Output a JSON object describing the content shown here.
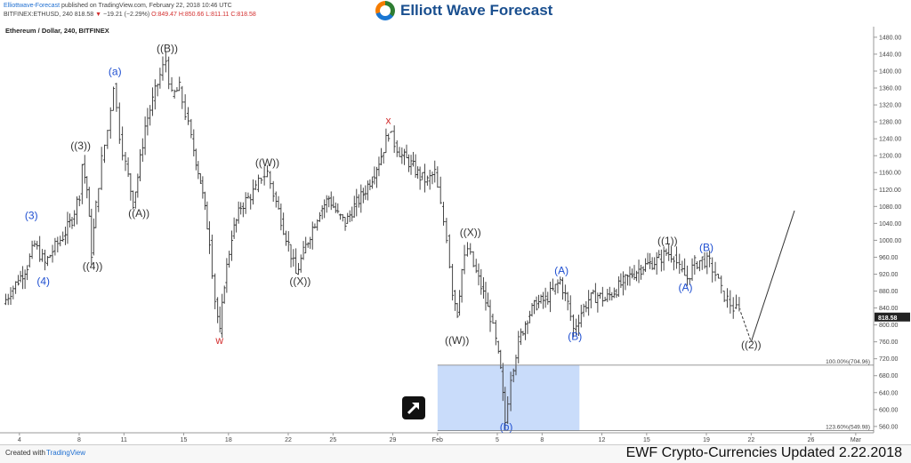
{
  "header": {
    "author": "Elliottwave-Forecast",
    "published": " published on TradingView.com, February 22, 2018 10:46 UTC",
    "symbol_line": "BITFINEX:ETHUSD, 240",
    "last": "818.58",
    "change": "−19.21 (−2.29%)",
    "ohlc": "O:849.47 H:850.66 L:811.11 C:818.58"
  },
  "logo": {
    "text": "Elliott Wave Forecast",
    "icon": "elliott-wave-globe-icon"
  },
  "footer": {
    "created_with": "Created with",
    "tradingview": "TradingView",
    "update_label": "EWF Crypto-Currencies Updated 2.22.2018"
  },
  "chart_data": {
    "type": "bar",
    "title": "Ethereum / Dollar, 240, BITFINEX",
    "ylim": [
      545,
      1505
    ],
    "y_ticks": [
      560,
      600,
      640,
      680,
      720,
      760,
      800,
      840,
      880,
      920,
      960,
      1000,
      1040,
      1080,
      1120,
      1160,
      1200,
      1240,
      1280,
      1320,
      1360,
      1400,
      1440,
      1480
    ],
    "y_tick_labels": [
      "560.00",
      "600.00",
      "640.00",
      "680.00",
      "720.00",
      "760.00",
      "800.00",
      "840.00",
      "880.00",
      "920.00",
      "960.00",
      "1000.00",
      "1040.00",
      "1080.00",
      "1120.00",
      "1160.00",
      "1200.00",
      "1240.00",
      "1280.00",
      "1320.00",
      "1360.00",
      "1400.00",
      "1440.00",
      "1480.00"
    ],
    "last_price_label": "818.58",
    "x_ticks": [
      {
        "day": 4,
        "label": "4"
      },
      {
        "day": 8,
        "label": "8"
      },
      {
        "day": 11,
        "label": "11"
      },
      {
        "day": 15,
        "label": "15"
      },
      {
        "day": 18,
        "label": "18"
      },
      {
        "day": 22,
        "label": "22"
      },
      {
        "day": 25,
        "label": "25"
      },
      {
        "day": 29,
        "label": "29"
      },
      {
        "day": 32,
        "label": "Feb"
      },
      {
        "day": 36,
        "label": "5"
      },
      {
        "day": 39,
        "label": "8"
      },
      {
        "day": 43,
        "label": "12"
      },
      {
        "day": 46,
        "label": "15"
      },
      {
        "day": 50,
        "label": "19"
      },
      {
        "day": 53,
        "label": "22"
      },
      {
        "day": 57,
        "label": "26"
      },
      {
        "day": 60,
        "label": "Mar"
      }
    ],
    "xlim": [
      2.7,
      61.2
    ],
    "price_path": [
      [
        3.0,
        850
      ],
      [
        3.5,
        880
      ],
      [
        4.0,
        905
      ],
      [
        4.6,
        940
      ],
      [
        5.1,
        990
      ],
      [
        5.8,
        945
      ],
      [
        6.3,
        975
      ],
      [
        7.0,
        1010
      ],
      [
        7.6,
        1050
      ],
      [
        8.1,
        1110
      ],
      [
        8.3,
        1180
      ],
      [
        8.6,
        1120
      ],
      [
        8.9,
        970
      ],
      [
        9.2,
        1080
      ],
      [
        9.6,
        1190
      ],
      [
        10.0,
        1260
      ],
      [
        10.4,
        1370
      ],
      [
        10.8,
        1250
      ],
      [
        11.2,
        1180
      ],
      [
        11.7,
        1090
      ],
      [
        12.0,
        1150
      ],
      [
        12.5,
        1270
      ],
      [
        13.0,
        1330
      ],
      [
        13.5,
        1390
      ],
      [
        13.9,
        1425
      ],
      [
        14.3,
        1340
      ],
      [
        14.8,
        1360
      ],
      [
        15.2,
        1300
      ],
      [
        15.6,
        1240
      ],
      [
        16.2,
        1140
      ],
      [
        16.8,
        1000
      ],
      [
        17.2,
        860
      ],
      [
        17.5,
        780
      ],
      [
        17.8,
        900
      ],
      [
        18.3,
        1010
      ],
      [
        18.9,
        1080
      ],
      [
        19.4,
        1100
      ],
      [
        19.9,
        1120
      ],
      [
        20.3,
        1150
      ],
      [
        20.7,
        1160
      ],
      [
        21.1,
        1110
      ],
      [
        21.6,
        1050
      ],
      [
        22.1,
        990
      ],
      [
        22.6,
        920
      ],
      [
        23.1,
        970
      ],
      [
        23.7,
        1030
      ],
      [
        24.2,
        1070
      ],
      [
        24.8,
        1100
      ],
      [
        25.4,
        1060
      ],
      [
        25.9,
        1040
      ],
      [
        26.5,
        1080
      ],
      [
        27.1,
        1110
      ],
      [
        27.7,
        1150
      ],
      [
        28.3,
        1200
      ],
      [
        28.8,
        1255
      ],
      [
        29.2,
        1230
      ],
      [
        29.7,
        1200
      ],
      [
        30.3,
        1180
      ],
      [
        30.9,
        1150
      ],
      [
        31.4,
        1140
      ],
      [
        31.9,
        1160
      ],
      [
        32.3,
        1080
      ],
      [
        32.7,
        1010
      ],
      [
        33.1,
        880
      ],
      [
        33.4,
        830
      ],
      [
        33.7,
        930
      ],
      [
        34.1,
        980
      ],
      [
        34.5,
        940
      ],
      [
        35.0,
        890
      ],
      [
        35.6,
        820
      ],
      [
        36.0,
        760
      ],
      [
        36.3,
        690
      ],
      [
        36.6,
        570
      ],
      [
        37.0,
        680
      ],
      [
        37.5,
        760
      ],
      [
        38.1,
        820
      ],
      [
        38.7,
        850
      ],
      [
        39.3,
        860
      ],
      [
        39.8,
        880
      ],
      [
        40.3,
        905
      ],
      [
        40.8,
        850
      ],
      [
        41.2,
        790
      ],
      [
        41.7,
        830
      ],
      [
        42.2,
        860
      ],
      [
        42.8,
        870
      ],
      [
        43.3,
        860
      ],
      [
        43.9,
        880
      ],
      [
        44.5,
        900
      ],
      [
        45.1,
        920
      ],
      [
        45.7,
        935
      ],
      [
        46.3,
        945
      ],
      [
        46.9,
        955
      ],
      [
        47.4,
        970
      ],
      [
        47.9,
        965
      ],
      [
        48.3,
        930
      ],
      [
        48.8,
        910
      ],
      [
        49.3,
        945
      ],
      [
        49.8,
        955
      ],
      [
        50.3,
        945
      ],
      [
        50.7,
        920
      ],
      [
        51.1,
        880
      ],
      [
        51.5,
        860
      ],
      [
        51.9,
        840
      ],
      [
        52.3,
        830
      ]
    ],
    "projection": [
      [
        52.3,
        830
      ],
      [
        53.0,
        760
      ]
    ],
    "projection_up": [
      [
        53.0,
        760
      ],
      [
        55.9,
        1070
      ]
    ],
    "zone": {
      "x0": 32.0,
      "x1": 41.5,
      "y_high": 704.96,
      "y_low": 549.98,
      "labels": [
        "100.00%(704.96)",
        "123.60%(549.98)"
      ]
    },
    "wave_labels": [
      {
        "text": "(3)",
        "x": 4.8,
        "y": 1050,
        "color": "#1f4fd1"
      },
      {
        "text": "(4)",
        "x": 5.6,
        "y": 895,
        "color": "#1f4fd1"
      },
      {
        "text": "((3))",
        "x": 8.1,
        "y": 1215,
        "color": "#333333"
      },
      {
        "text": "((4))",
        "x": 8.9,
        "y": 930,
        "color": "#333333"
      },
      {
        "text": "(a)",
        "x": 10.4,
        "y": 1390,
        "color": "#1f4fd1"
      },
      {
        "text": "((A))",
        "x": 12.0,
        "y": 1055,
        "color": "#333333"
      },
      {
        "text": "((B))",
        "x": 13.9,
        "y": 1445,
        "color": "#333333"
      },
      {
        "text": "w",
        "x": 17.4,
        "y": 755,
        "color": "#d32f2f"
      },
      {
        "text": "((W))",
        "x": 20.6,
        "y": 1175,
        "color": "#333333"
      },
      {
        "text": "((X))",
        "x": 22.8,
        "y": 895,
        "color": "#333333"
      },
      {
        "text": "x",
        "x": 28.7,
        "y": 1275,
        "color": "#d32f2f"
      },
      {
        "text": "((W))",
        "x": 33.3,
        "y": 755,
        "color": "#333333"
      },
      {
        "text": "((X))",
        "x": 34.2,
        "y": 1010,
        "color": "#333333"
      },
      {
        "text": "(b)",
        "x": 36.6,
        "y": 550,
        "color": "#1f4fd1"
      },
      {
        "text": "(A)",
        "x": 40.3,
        "y": 920,
        "color": "#1f4fd1"
      },
      {
        "text": "(B)",
        "x": 41.2,
        "y": 765,
        "color": "#1f4fd1"
      },
      {
        "text": "((1))",
        "x": 47.4,
        "y": 990,
        "color": "#333333"
      },
      {
        "text": "(A)",
        "x": 48.6,
        "y": 880,
        "color": "#1f4fd1"
      },
      {
        "text": "(B)",
        "x": 50.0,
        "y": 975,
        "color": "#1f4fd1"
      },
      {
        "text": "((2))",
        "x": 53.0,
        "y": 745,
        "color": "#333333"
      }
    ],
    "colors": {
      "bars": "#333333",
      "zone_fill": "#c9dcfa",
      "zone_edge": "#777777",
      "grid": "#e3e3e3",
      "price_label_bg": "#222222"
    }
  }
}
